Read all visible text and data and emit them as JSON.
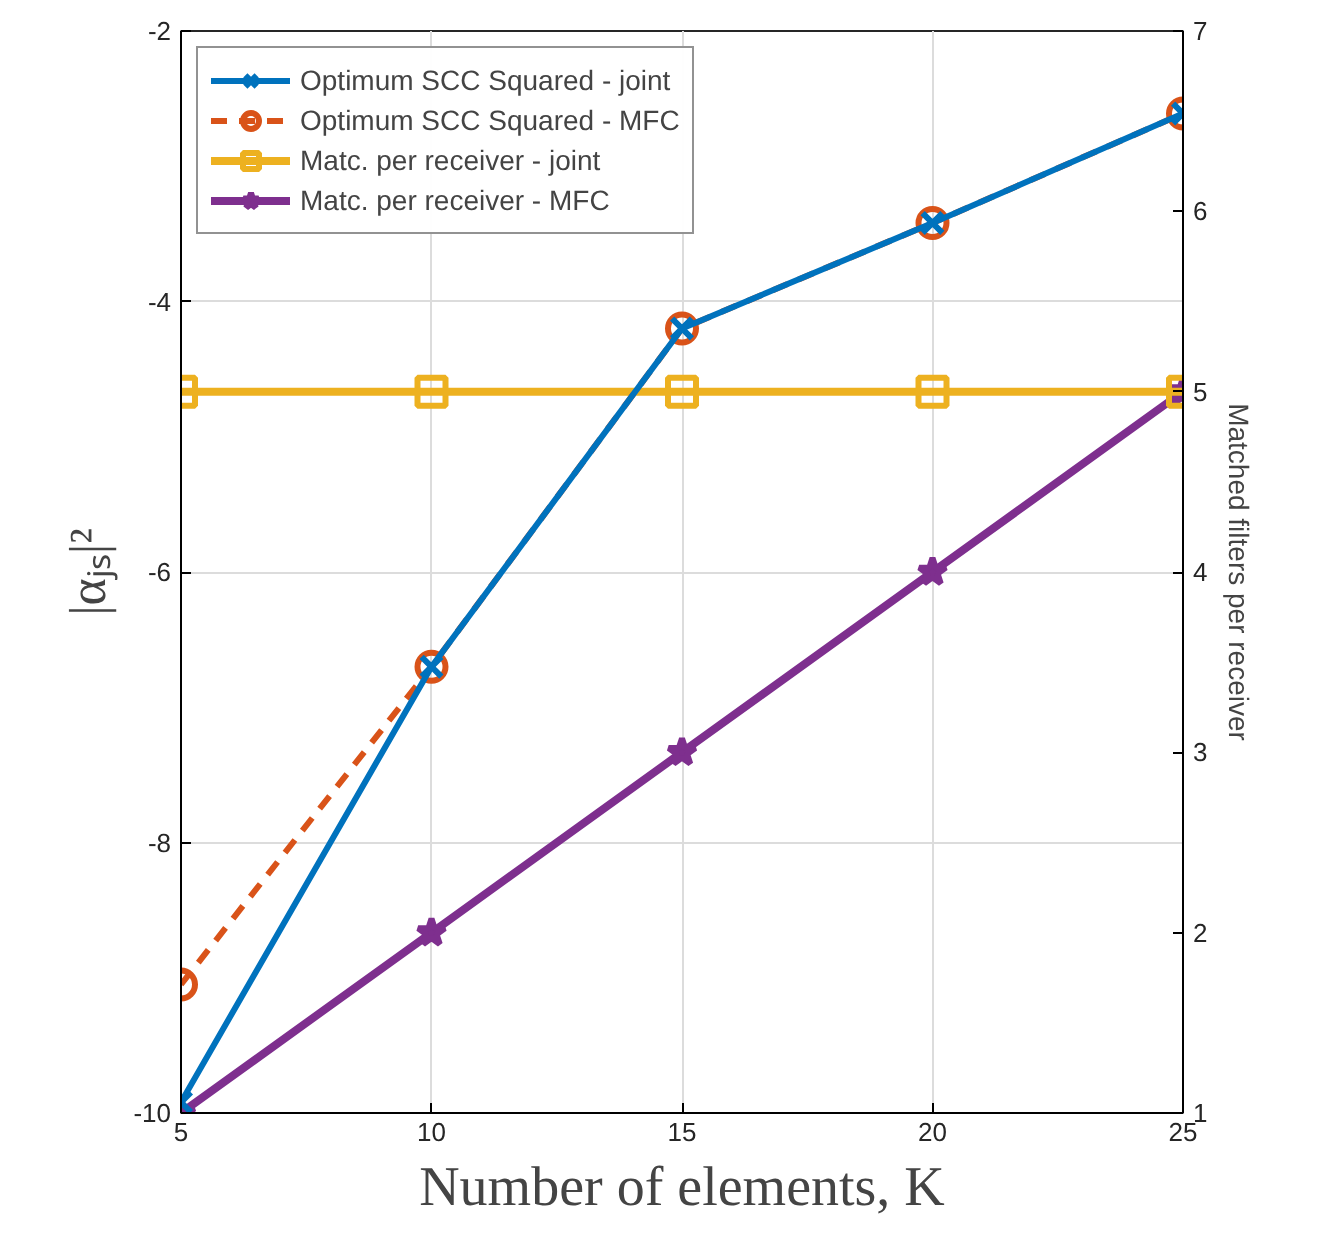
{
  "chart_data": {
    "type": "line",
    "xlabel": "Number of elements, K",
    "ylabel": "|αⱼₛ|²",
    "y2label": "Matched filters per receiver",
    "x": [
      5,
      10,
      15,
      20,
      25
    ],
    "xlim": [
      5,
      25
    ],
    "xticks": [
      5,
      10,
      15,
      20,
      25
    ],
    "ylim": [
      -10,
      -2
    ],
    "yticks": [
      -10,
      -8,
      -6,
      -4,
      -2
    ],
    "y2lim": [
      1,
      7
    ],
    "y2ticks": [
      1,
      2,
      3,
      4,
      5,
      6,
      7
    ],
    "grid": true,
    "legend": "top left",
    "series": [
      {
        "name": "Optimum SCC Squared - joint",
        "color": "#0072bd",
        "values": [
          -9.92,
          -6.7,
          -4.2,
          -3.42,
          -2.61
        ],
        "marker": "cross",
        "line_style": "solid"
      },
      {
        "name": "Optimum SCC Squared - MFC",
        "color": "#d95319",
        "values": [
          -9.05,
          -6.7,
          -4.2,
          -3.42,
          -2.61
        ],
        "marker": "circle",
        "line_style": "dashed"
      },
      {
        "name": "Matc. per receiver - joint",
        "color": "#edb120",
        "values": [
          5,
          5,
          5,
          5,
          5
        ],
        "axis": "y2",
        "marker": "square",
        "line_style": "solid"
      },
      {
        "name": "Matc. per receiver - MFC",
        "color": "#7e2f8e",
        "values": [
          1,
          2,
          3,
          4,
          5
        ],
        "axis": "y2",
        "marker": "star",
        "line_style": "solid"
      }
    ]
  }
}
